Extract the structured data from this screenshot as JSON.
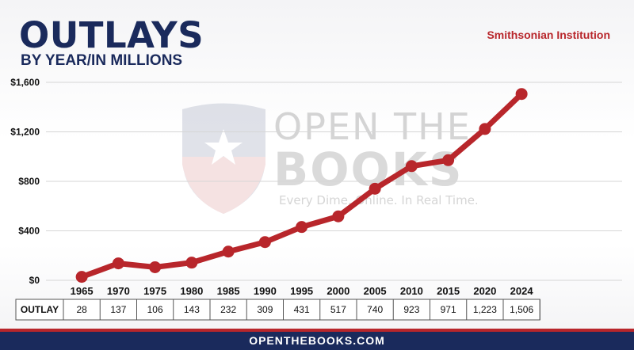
{
  "header": {
    "title": "OUTLAYS",
    "subtitle": "BY YEAR/IN MILLIONS",
    "organization": "Smithsonian Institution"
  },
  "watermark": {
    "line1": "OPEN THE",
    "line2": "BOOKS",
    "tagline": "Every Dime. Online. In Real Time."
  },
  "footer": {
    "text": "OPENTHEBOOKS.COM"
  },
  "table": {
    "row_label": "OUTLAY"
  },
  "colors": {
    "line": "#b8262b",
    "navy": "#1a2a5c"
  },
  "chart_data": {
    "type": "line",
    "categories": [
      "1965",
      "1970",
      "1975",
      "1980",
      "1985",
      "1990",
      "1995",
      "2000",
      "2005",
      "2010",
      "2015",
      "2020",
      "2024"
    ],
    "values": [
      28,
      137,
      106,
      143,
      232,
      309,
      431,
      517,
      740,
      923,
      971,
      1223,
      1506
    ],
    "value_labels": [
      "28",
      "137",
      "106",
      "143",
      "232",
      "309",
      "431",
      "517",
      "740",
      "923",
      "971",
      "1,223",
      "1,506"
    ],
    "yticks": [
      0,
      400,
      800,
      1200,
      1600
    ],
    "ytick_labels": [
      "$0",
      "$400",
      "$800",
      "$1,200",
      "$1,600"
    ],
    "ylim": [
      0,
      1600
    ]
  }
}
